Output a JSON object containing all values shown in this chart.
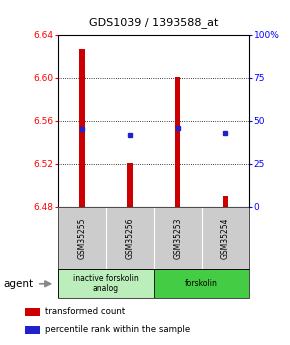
{
  "title": "GDS1039 / 1393588_at",
  "samples": [
    "GSM35255",
    "GSM35256",
    "GSM35253",
    "GSM35254"
  ],
  "bar_values": [
    6.627,
    6.521,
    6.601,
    6.49
  ],
  "baseline": 6.48,
  "percentile_values": [
    45,
    42,
    46,
    43
  ],
  "ylim_left": [
    6.48,
    6.64
  ],
  "ylim_right": [
    0,
    100
  ],
  "yticks_left": [
    6.48,
    6.52,
    6.56,
    6.6,
    6.64
  ],
  "yticks_right": [
    0,
    25,
    50,
    75,
    100
  ],
  "ytick_labels_right": [
    "0",
    "25",
    "50",
    "75",
    "100%"
  ],
  "bar_color": "#cc0000",
  "dot_color": "#2222cc",
  "bar_width": 0.12,
  "groups": [
    {
      "label": "inactive forskolin\nanalog",
      "samples": [
        0,
        1
      ],
      "color": "#bbeebb"
    },
    {
      "label": "forskolin",
      "samples": [
        2,
        3
      ],
      "color": "#44cc44"
    }
  ],
  "agent_text": "agent",
  "legend_red": "transformed count",
  "legend_blue": "percentile rank within the sample",
  "bg_label": "#cccccc"
}
